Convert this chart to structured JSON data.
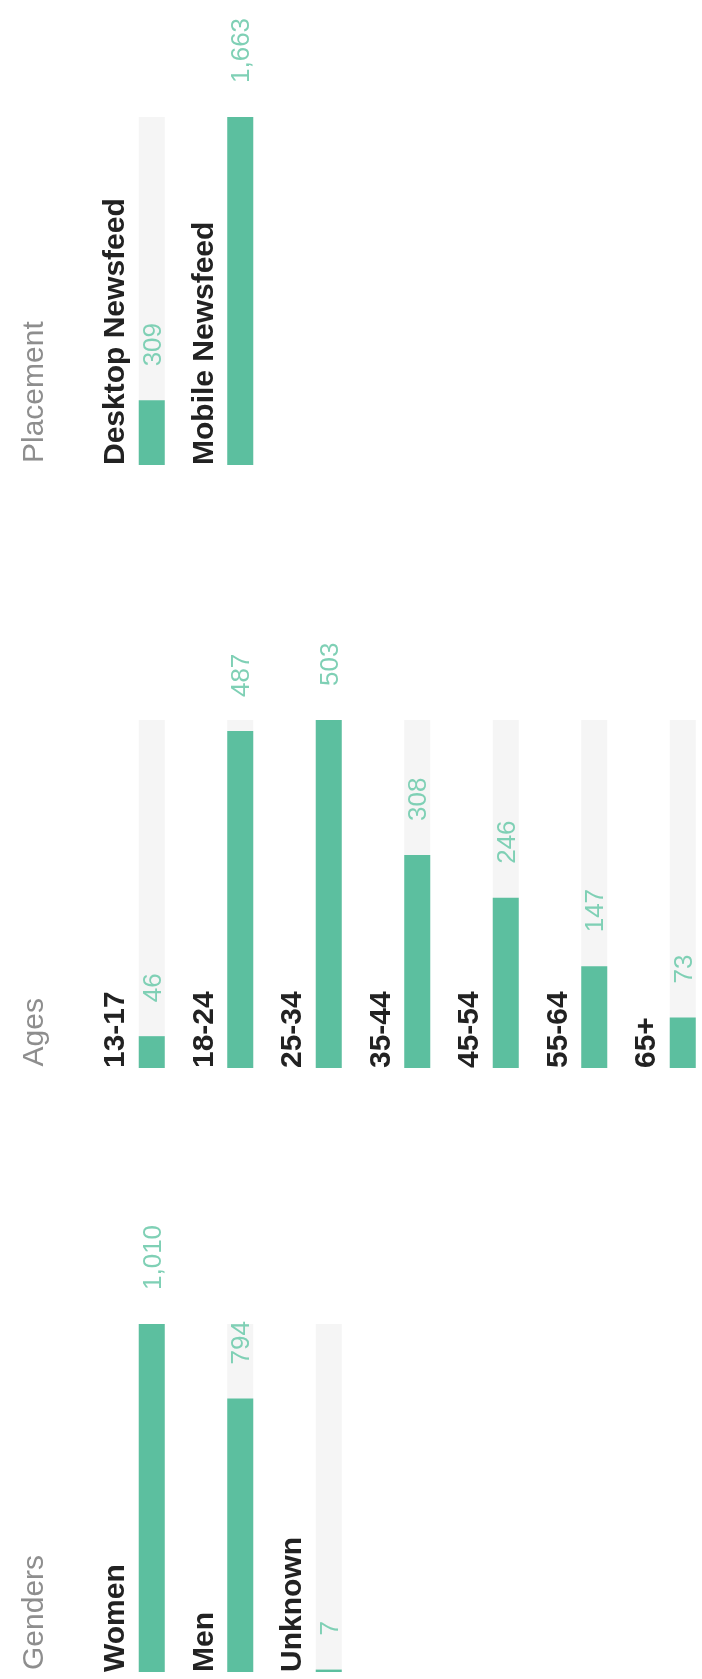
{
  "chart_data": [
    {
      "type": "bar",
      "title": "Genders",
      "categories": [
        "Women",
        "Men",
        "Unknown"
      ],
      "values": [
        1010,
        794,
        7
      ],
      "value_labels": [
        "1,010",
        "794",
        "7"
      ],
      "color": "#5cbf9f",
      "tick_labels": "x"
    },
    {
      "type": "bar",
      "title": "Ages",
      "categories": [
        "13-17",
        "18-24",
        "25-34",
        "35-44",
        "45-54",
        "55-64",
        "65+"
      ],
      "values": [
        46,
        487,
        503,
        308,
        246,
        147,
        73
      ],
      "data_labels": true,
      "color": "#5cbf9f",
      "tick_labels": "x"
    },
    {
      "type": "bar",
      "title": "Placement",
      "categories": [
        "Desktop Newsfeed",
        "Mobile Newsfeed"
      ],
      "values": [
        309,
        1663
      ],
      "value_labels": [
        "309",
        "1,663"
      ],
      "color": "#5cbf9f",
      "tick_labels": "x"
    }
  ]
}
